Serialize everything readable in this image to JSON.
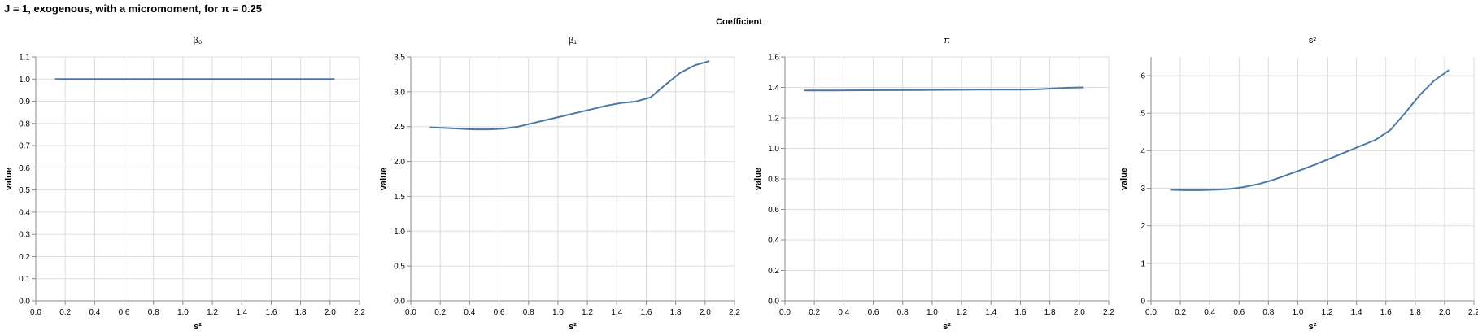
{
  "title": "J = 1, exogenous, with a micromoment,  for π = 0.25",
  "facet_header": "Coefficient",
  "colors": {
    "line": "#4c78a8",
    "grid": "#dddddd",
    "axis": "#888888"
  },
  "chart_data": [
    {
      "type": "line",
      "title": "β₀",
      "xlabel": "s²",
      "ylabel": "value",
      "xlim": [
        0,
        2.2
      ],
      "ylim": [
        0,
        1.1
      ],
      "xticks": [
        "0.0",
        "0.2",
        "0.4",
        "0.6",
        "0.8",
        "1.0",
        "1.2",
        "1.4",
        "1.6",
        "1.8",
        "2.0",
        "2.2"
      ],
      "yticks": [
        "0.0",
        "0.1",
        "0.2",
        "0.3",
        "0.4",
        "0.5",
        "0.6",
        "0.7",
        "0.8",
        "0.9",
        "1.0",
        "1.1"
      ],
      "grid": true,
      "x": [
        0.13,
        0.33,
        0.53,
        0.73,
        0.93,
        1.13,
        1.33,
        1.53,
        1.73,
        1.93,
        2.03
      ],
      "y": [
        1.0,
        1.0,
        1.0,
        1.0,
        1.0,
        1.0,
        1.0,
        1.0,
        1.0,
        1.0,
        1.0
      ]
    },
    {
      "type": "line",
      "title": "β₁",
      "xlabel": "s²",
      "ylabel": "value",
      "xlim": [
        0,
        2.2
      ],
      "ylim": [
        0,
        3.5
      ],
      "xticks": [
        "0.0",
        "0.2",
        "0.4",
        "0.6",
        "0.8",
        "1.0",
        "1.2",
        "1.4",
        "1.6",
        "1.8",
        "2.0",
        "2.2"
      ],
      "yticks": [
        "0.0",
        "0.5",
        "1.0",
        "1.5",
        "2.0",
        "2.5",
        "3.0",
        "3.5"
      ],
      "grid": true,
      "x": [
        0.13,
        0.23,
        0.33,
        0.43,
        0.53,
        0.63,
        0.73,
        0.83,
        0.93,
        1.03,
        1.13,
        1.23,
        1.33,
        1.43,
        1.53,
        1.63,
        1.73,
        1.83,
        1.93,
        2.03
      ],
      "y": [
        2.49,
        2.48,
        2.47,
        2.46,
        2.46,
        2.47,
        2.5,
        2.55,
        2.6,
        2.65,
        2.7,
        2.75,
        2.8,
        2.84,
        2.86,
        2.92,
        3.1,
        3.27,
        3.38,
        3.44
      ]
    },
    {
      "type": "line",
      "title": "π",
      "xlabel": "s²",
      "ylabel": "value",
      "xlim": [
        0,
        2.2
      ],
      "ylim": [
        0,
        1.6
      ],
      "xticks": [
        "0.0",
        "0.2",
        "0.4",
        "0.6",
        "0.8",
        "1.0",
        "1.2",
        "1.4",
        "1.6",
        "1.8",
        "2.0",
        "2.2"
      ],
      "yticks": [
        "0.0",
        "0.2",
        "0.4",
        "0.6",
        "0.8",
        "1.0",
        "1.2",
        "1.4",
        "1.6"
      ],
      "grid": true,
      "x": [
        0.13,
        0.33,
        0.53,
        0.73,
        0.93,
        1.13,
        1.33,
        1.53,
        1.63,
        1.73,
        1.83,
        1.93,
        2.03
      ],
      "y": [
        1.38,
        1.38,
        1.381,
        1.382,
        1.383,
        1.384,
        1.385,
        1.385,
        1.385,
        1.388,
        1.393,
        1.398,
        1.4
      ]
    },
    {
      "type": "line",
      "title": "s²",
      "xlabel": "s²",
      "ylabel": "value",
      "xlim": [
        0,
        2.2
      ],
      "ylim": [
        0,
        6.5
      ],
      "xticks": [
        "0.0",
        "0.2",
        "0.4",
        "0.6",
        "0.8",
        "1.0",
        "1.2",
        "1.4",
        "1.6",
        "1.8",
        "2.0",
        "2.2"
      ],
      "yticks": [
        "0",
        "1",
        "2",
        "3",
        "4",
        "5",
        "6"
      ],
      "grid": true,
      "x": [
        0.13,
        0.23,
        0.33,
        0.43,
        0.53,
        0.63,
        0.73,
        0.83,
        0.93,
        1.03,
        1.13,
        1.23,
        1.33,
        1.43,
        1.53,
        1.63,
        1.73,
        1.83,
        1.93,
        2.03
      ],
      "y": [
        2.96,
        2.95,
        2.95,
        2.96,
        2.98,
        3.03,
        3.11,
        3.22,
        3.36,
        3.5,
        3.65,
        3.81,
        3.97,
        4.13,
        4.29,
        4.55,
        5.0,
        5.48,
        5.87,
        6.15
      ]
    }
  ]
}
